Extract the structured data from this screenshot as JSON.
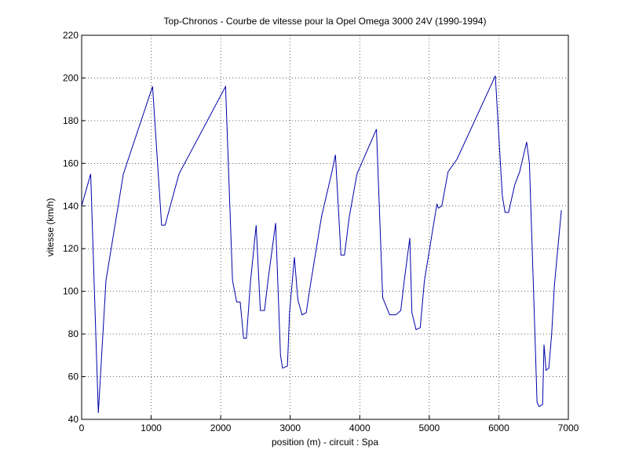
{
  "chart_data": {
    "type": "line",
    "title": "Top-Chronos - Courbe de vitesse pour la Opel Omega 3000 24V (1990-1994)",
    "xlabel": "position (m) - circuit : Spa",
    "ylabel": "vitesse (km/h)",
    "xlim": [
      0,
      7000
    ],
    "ylim": [
      40,
      220
    ],
    "xticks": [
      0,
      1000,
      2000,
      3000,
      4000,
      5000,
      6000,
      7000
    ],
    "yticks": [
      40,
      60,
      80,
      100,
      120,
      140,
      160,
      180,
      200,
      220
    ],
    "grid": true,
    "series": [
      {
        "name": "vitesse",
        "color": "#0000aa",
        "x": [
          0,
          130,
          240,
          350,
          600,
          1020,
          1150,
          1200,
          1400,
          2070,
          2170,
          2230,
          2280,
          2330,
          2370,
          2430,
          2510,
          2570,
          2630,
          2680,
          2790,
          2860,
          2890,
          2960,
          2990,
          3060,
          3110,
          3170,
          3230,
          3300,
          3450,
          3600,
          3650,
          3730,
          3780,
          3850,
          3960,
          4240,
          4330,
          4430,
          4520,
          4590,
          4640,
          4720,
          4750,
          4810,
          4870,
          4930,
          5110,
          5130,
          5180,
          5270,
          5400,
          5950,
          6050,
          6090,
          6140,
          6230,
          6300,
          6400,
          6440,
          6500,
          6550,
          6580,
          6630,
          6650,
          6680,
          6720,
          6760,
          6800,
          6900
        ],
        "values": [
          140,
          155,
          43,
          105,
          155,
          196,
          131,
          131,
          155,
          196,
          105,
          95,
          95,
          78,
          78,
          105,
          131,
          91,
          91,
          105,
          132,
          70,
          64,
          65,
          90,
          116,
          96,
          89,
          90,
          105,
          135,
          156,
          164,
          117,
          117,
          135,
          155,
          176,
          97,
          89,
          89,
          91,
          105,
          125,
          90,
          82,
          83,
          105,
          141,
          139,
          140,
          156,
          162,
          201,
          145,
          137,
          137,
          150,
          156,
          170,
          160,
          100,
          48,
          46,
          47,
          75,
          63,
          64,
          80,
          103,
          138
        ]
      }
    ]
  }
}
